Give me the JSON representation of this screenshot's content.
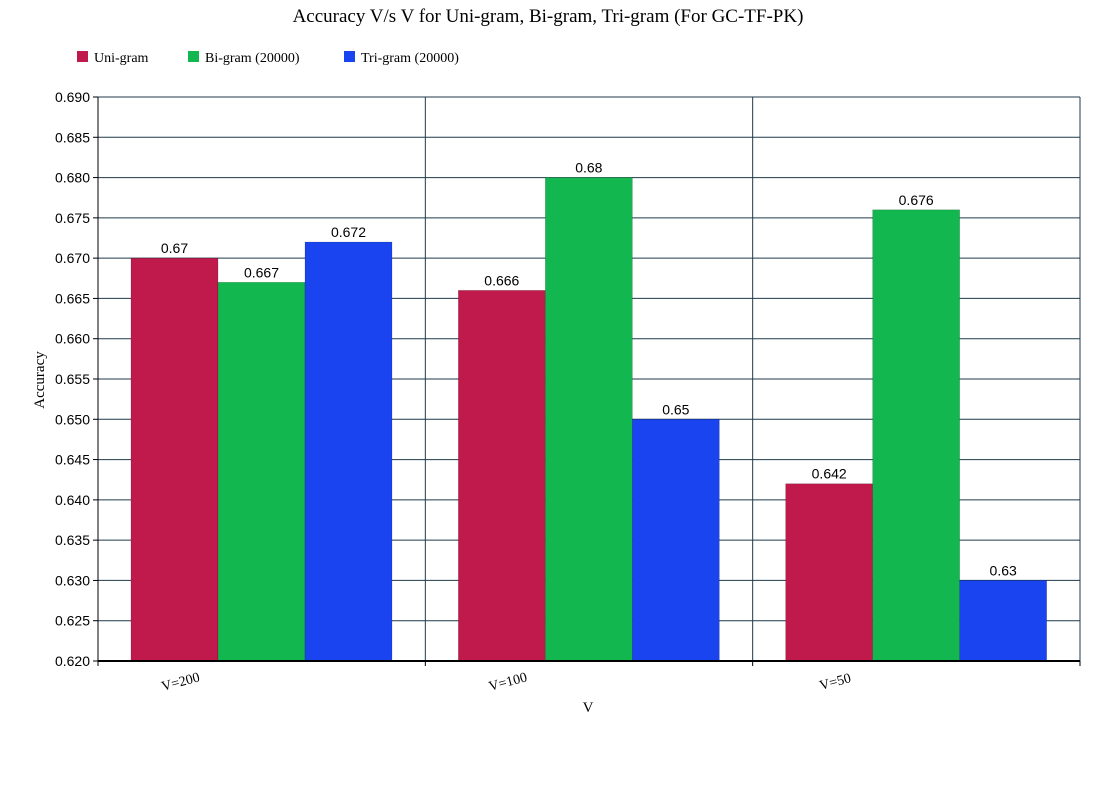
{
  "chart_data": {
    "type": "bar",
    "title": "Accuracy V/s V for Uni-gram, Bi-gram, Tri-gram (For GC-TF-PK)",
    "xlabel": "V",
    "ylabel": "Accuracy",
    "categories": [
      "V=200",
      "V=100",
      "V=50"
    ],
    "series": [
      {
        "name": "Uni-gram",
        "color": "#c0194b",
        "values": [
          0.67,
          0.666,
          0.642
        ],
        "labels": [
          "0.67",
          "0.666",
          "0.642"
        ]
      },
      {
        "name": "Bi-gram (20000)",
        "color": "#12b84f",
        "values": [
          0.667,
          0.68,
          0.676
        ],
        "labels": [
          "0.667",
          "0.68",
          "0.676"
        ]
      },
      {
        "name": "Tri-gram (20000)",
        "color": "#1a44f0",
        "values": [
          0.672,
          0.65,
          0.63
        ],
        "labels": [
          "0.672",
          "0.65",
          "0.63"
        ]
      }
    ],
    "ylim": [
      0.62,
      0.69
    ],
    "yticks": [
      "0.620",
      "0.625",
      "0.630",
      "0.635",
      "0.640",
      "0.645",
      "0.650",
      "0.655",
      "0.660",
      "0.665",
      "0.670",
      "0.675",
      "0.680",
      "0.685",
      "0.690"
    ],
    "grid": true,
    "legend_position": "top-left"
  }
}
